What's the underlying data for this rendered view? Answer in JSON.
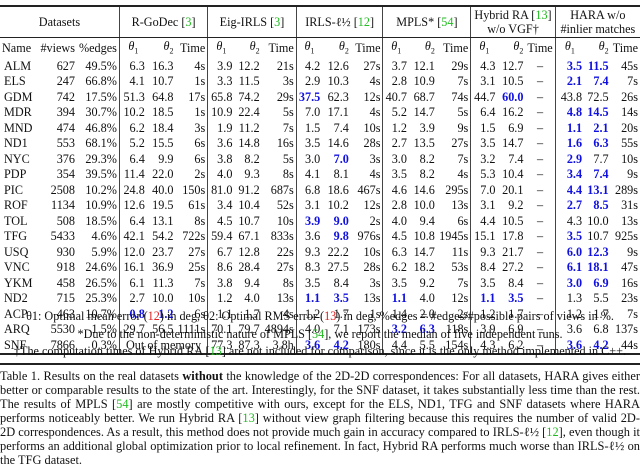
{
  "table": {
    "group_headers": [
      {
        "label": "Datasets"
      },
      {
        "label": "R-GoDec",
        "cite": "3"
      },
      {
        "label": "Eig-IRLS",
        "cite": "3"
      },
      {
        "label": "IRLS-ℓ½",
        "cite": "12"
      },
      {
        "label": "MPLS*",
        "cite": "54"
      },
      {
        "label_line1": "Hybrid RA",
        "cite": "13",
        "label_line2": "w/o VGF†"
      },
      {
        "label_line1": "HARA w/o",
        "label_line2": "#inlier matches"
      }
    ],
    "sub_headers": {
      "name": "Name",
      "views": "#views",
      "edges": "%edges",
      "theta1": "θ1",
      "theta2": "θ2",
      "time": "Time"
    },
    "rows": [
      {
        "name": "ALM",
        "views": "627",
        "edges": "49.5%",
        "rgodec": [
          "6.3",
          "16.3",
          "4s"
        ],
        "eig": [
          "3.9",
          "12.2",
          "21s"
        ],
        "irls": [
          "4.2",
          "12.6",
          "27s"
        ],
        "mpls": [
          "3.7",
          "12.1",
          "29s"
        ],
        "hybrid": [
          "4.3",
          "12.7",
          "–"
        ],
        "hara": [
          "3.5",
          "11.5",
          "45s"
        ],
        "best": {
          "hara": [
            0,
            1
          ]
        }
      },
      {
        "name": "ELS",
        "views": "247",
        "edges": "66.8%",
        "rgodec": [
          "4.1",
          "10.7",
          "1s"
        ],
        "eig": [
          "3.3",
          "11.5",
          "3s"
        ],
        "irls": [
          "2.9",
          "10.3",
          "4s"
        ],
        "mpls": [
          "2.8",
          "10.9",
          "7s"
        ],
        "hybrid": [
          "3.1",
          "10.5",
          "–"
        ],
        "hara": [
          "2.1",
          "7.4",
          "7s"
        ],
        "best": {
          "hara": [
            0,
            1
          ]
        }
      },
      {
        "name": "GDM",
        "views": "742",
        "edges": "17.5%",
        "rgodec": [
          "51.3",
          "64.8",
          "17s"
        ],
        "eig": [
          "65.8",
          "74.2",
          "29s"
        ],
        "irls": [
          "37.5",
          "62.3",
          "12s"
        ],
        "mpls": [
          "40.7",
          "68.7",
          "74s"
        ],
        "hybrid": [
          "44.7",
          "60.0",
          "–"
        ],
        "hara": [
          "43.8",
          "72.5",
          "26s"
        ],
        "best": {
          "irls": [
            0
          ],
          "hybrid": [
            1
          ]
        }
      },
      {
        "name": "MDR",
        "views": "394",
        "edges": "30.7%",
        "rgodec": [
          "10.2",
          "18.5",
          "1s"
        ],
        "eig": [
          "10.9",
          "22.4",
          "5s"
        ],
        "irls": [
          "7.0",
          "17.1",
          "4s"
        ],
        "mpls": [
          "5.2",
          "14.7",
          "5s"
        ],
        "hybrid": [
          "6.4",
          "16.2",
          "–"
        ],
        "hara": [
          "4.8",
          "14.5",
          "14s"
        ],
        "best": {
          "hara": [
            0,
            1
          ]
        }
      },
      {
        "name": "MND",
        "views": "474",
        "edges": "46.8%",
        "rgodec": [
          "6.2",
          "18.4",
          "3s"
        ],
        "eig": [
          "1.9",
          "11.2",
          "7s"
        ],
        "irls": [
          "1.5",
          "7.4",
          "10s"
        ],
        "mpls": [
          "1.2",
          "3.9",
          "9s"
        ],
        "hybrid": [
          "1.5",
          "6.9",
          "–"
        ],
        "hara": [
          "1.1",
          "2.1",
          "20s"
        ],
        "best": {
          "hara": [
            0,
            1
          ]
        }
      },
      {
        "name": "ND1",
        "views": "553",
        "edges": "68.1%",
        "rgodec": [
          "5.2",
          "15.5",
          "6s"
        ],
        "eig": [
          "3.6",
          "14.8",
          "16s"
        ],
        "irls": [
          "3.5",
          "14.6",
          "28s"
        ],
        "mpls": [
          "2.7",
          "13.5",
          "27s"
        ],
        "hybrid": [
          "3.5",
          "14.7",
          "–"
        ],
        "hara": [
          "1.6",
          "6.3",
          "55s"
        ],
        "best": {
          "hara": [
            0,
            1
          ]
        }
      },
      {
        "name": "NYC",
        "views": "376",
        "edges": "29.3%",
        "rgodec": [
          "6.4",
          "9.9",
          "6s"
        ],
        "eig": [
          "3.8",
          "8.2",
          "5s"
        ],
        "irls": [
          "3.0",
          "7.0",
          "3s"
        ],
        "mpls": [
          "3.0",
          "8.2",
          "7s"
        ],
        "hybrid": [
          "3.2",
          "7.4",
          "–"
        ],
        "hara": [
          "2.9",
          "7.7",
          "10s"
        ],
        "best": {
          "irls": [
            1
          ],
          "hara": [
            0
          ]
        }
      },
      {
        "name": "PDP",
        "views": "354",
        "edges": "39.5%",
        "rgodec": [
          "11.4",
          "22.0",
          "2s"
        ],
        "eig": [
          "4.0",
          "9.3",
          "8s"
        ],
        "irls": [
          "4.1",
          "8.1",
          "4s"
        ],
        "mpls": [
          "3.5",
          "8.2",
          "4s"
        ],
        "hybrid": [
          "5.3",
          "10.4",
          "–"
        ],
        "hara": [
          "3.4",
          "7.4",
          "9s"
        ],
        "best": {
          "hara": [
            0,
            1
          ]
        }
      },
      {
        "name": "PIC",
        "views": "2508",
        "edges": "10.2%",
        "rgodec": [
          "24.8",
          "40.0",
          "150s"
        ],
        "eig": [
          "81.0",
          "91.2",
          "687s"
        ],
        "irls": [
          "6.8",
          "18.6",
          "467s"
        ],
        "mpls": [
          "4.6",
          "14.6",
          "295s"
        ],
        "hybrid": [
          "7.0",
          "20.1",
          "–"
        ],
        "hara": [
          "4.4",
          "13.1",
          "289s"
        ],
        "best": {
          "hara": [
            0,
            1
          ]
        }
      },
      {
        "name": "ROF",
        "views": "1134",
        "edges": "10.9%",
        "rgodec": [
          "12.6",
          "19.5",
          "61s"
        ],
        "eig": [
          "3.4",
          "10.4",
          "52s"
        ],
        "irls": [
          "3.1",
          "10.2",
          "12s"
        ],
        "mpls": [
          "2.8",
          "10.0",
          "13s"
        ],
        "hybrid": [
          "3.1",
          "9.2",
          "–"
        ],
        "hara": [
          "2.7",
          "8.5",
          "31s"
        ],
        "best": {
          "hara": [
            0,
            1
          ]
        }
      },
      {
        "name": "TOL",
        "views": "508",
        "edges": "18.5%",
        "rgodec": [
          "6.4",
          "13.1",
          "8s"
        ],
        "eig": [
          "4.5",
          "10.7",
          "10s"
        ],
        "irls": [
          "3.9",
          "9.0",
          "2s"
        ],
        "mpls": [
          "4.0",
          "9.4",
          "6s"
        ],
        "hybrid": [
          "4.4",
          "10.5",
          "–"
        ],
        "hara": [
          "4.3",
          "10.0",
          "13s"
        ],
        "best": {
          "irls": [
            0,
            1
          ]
        }
      },
      {
        "name": "TFG",
        "views": "5433",
        "edges": "4.6%",
        "rgodec": [
          "42.1",
          "54.2",
          "722s"
        ],
        "eig": [
          "59.4",
          "67.1",
          "833s"
        ],
        "irls": [
          "3.6",
          "9.8",
          "976s"
        ],
        "mpls": [
          "4.5",
          "10.8",
          "1945s"
        ],
        "hybrid": [
          "15.1",
          "17.8",
          "–"
        ],
        "hara": [
          "3.5",
          "10.7",
          "925s"
        ],
        "best": {
          "irls": [
            1
          ],
          "hara": [
            0
          ]
        }
      },
      {
        "name": "USQ",
        "views": "930",
        "edges": "5.9%",
        "rgodec": [
          "12.0",
          "23.7",
          "27s"
        ],
        "eig": [
          "6.7",
          "12.8",
          "22s"
        ],
        "irls": [
          "9.3",
          "22.2",
          "10s"
        ],
        "mpls": [
          "6.3",
          "14.7",
          "11s"
        ],
        "hybrid": [
          "9.3",
          "21.7",
          "–"
        ],
        "hara": [
          "6.0",
          "12.3",
          "9s"
        ],
        "best": {
          "hara": [
            0,
            1
          ]
        }
      },
      {
        "name": "VNC",
        "views": "918",
        "edges": "24.6%",
        "rgodec": [
          "16.1",
          "36.9",
          "25s"
        ],
        "eig": [
          "8.6",
          "28.4",
          "27s"
        ],
        "irls": [
          "8.3",
          "27.5",
          "28s"
        ],
        "mpls": [
          "6.2",
          "18.2",
          "53s"
        ],
        "hybrid": [
          "8.4",
          "27.2",
          "–"
        ],
        "hara": [
          "6.1",
          "18.1",
          "47s"
        ],
        "best": {
          "hara": [
            0,
            1
          ]
        }
      },
      {
        "name": "YKM",
        "views": "458",
        "edges": "26.5%",
        "rgodec": [
          "6.1",
          "11.3",
          "7s"
        ],
        "eig": [
          "3.8",
          "9.4",
          "8s"
        ],
        "irls": [
          "3.5",
          "8.4",
          "3s"
        ],
        "mpls": [
          "3.5",
          "9.2",
          "7s"
        ],
        "hybrid": [
          "3.5",
          "8.4",
          "–"
        ],
        "hara": [
          "3.0",
          "6.9",
          "16s"
        ],
        "best": {
          "hara": [
            0,
            1
          ]
        }
      },
      {
        "name": "ND2",
        "views": "715",
        "edges": "25.3%",
        "rgodec": [
          "2.7",
          "10.0",
          "10s"
        ],
        "eig": [
          "1.2",
          "4.0",
          "13s"
        ],
        "irls": [
          "1.1",
          "3.5",
          "13s"
        ],
        "mpls": [
          "1.1",
          "4.0",
          "12s"
        ],
        "hybrid": [
          "1.1",
          "3.5",
          "–"
        ],
        "hara": [
          "1.3",
          "5.5",
          "23s"
        ],
        "best": {
          "irls": [
            0,
            1
          ],
          "mpls": [
            0
          ],
          "hybrid": [
            0,
            1
          ]
        }
      },
      {
        "name": "ACP",
        "views": "463",
        "edges": "10.7%",
        "rgodec": [
          "0.8",
          "1.2",
          "6s"
        ],
        "eig": [
          "1.1",
          "1.7",
          "4s"
        ],
        "irls": [
          "1.2",
          "1.7",
          "1s"
        ],
        "mpls": [
          "1.4",
          "2.0",
          "2s"
        ],
        "hybrid": [
          "1.2",
          "1.7",
          "–"
        ],
        "hara": [
          "1.2",
          "1.7",
          "7s"
        ],
        "best": {
          "rgodec": [
            0,
            1
          ]
        }
      },
      {
        "name": "ARQ",
        "views": "5530",
        "edges": "1.5%",
        "rgodec": [
          "29.7",
          "56.5",
          "1111s"
        ],
        "eig": [
          "70.1",
          "79.7",
          "4894s"
        ],
        "irls": [
          "4.0",
          "7.1",
          "173s"
        ],
        "mpls": [
          "3.2",
          "6.3",
          "118s"
        ],
        "hybrid": [
          "3.9",
          "6.9",
          "–"
        ],
        "hara": [
          "3.6",
          "6.8",
          "137s"
        ],
        "best": {
          "mpls": [
            0,
            1
          ]
        }
      },
      {
        "name": "SNF",
        "views": "7866",
        "edges": "0.3%",
        "rgodec_merged": "Out of memory",
        "eig": [
          "77.3",
          "87.3",
          "3.8h"
        ],
        "irls": [
          "3.6",
          "4.2",
          "180s"
        ],
        "mpls": [
          "4.4",
          "5.5",
          "154s"
        ],
        "hybrid": [
          "4.3",
          "6.2",
          "–"
        ],
        "hara": [
          "3.6",
          "4.2",
          "44s"
        ],
        "best": {
          "irls": [
            0,
            1
          ],
          "hara": [
            0,
            1
          ]
        }
      }
    ]
  },
  "footnotes": {
    "line1": {
      "t1": "θ1: Optimal mean error (",
      "r1": "12",
      "t2": ") in deg, θ2: Optimal RMS error (",
      "r2": "13",
      "t3": ") in deg, %edges = #edges/#possible pairs of views in %."
    },
    "line2": {
      "t1": "*Due to the non-deterministic nature of MPLS [",
      "c": "54",
      "t2": "], we report the median of five independent runs."
    },
    "line3": {
      "t1": "†The computation times of Hybrid RA [",
      "c": "13",
      "t2": "] are not included for comparison, since it is the only method implemented in C++."
    }
  },
  "caption": {
    "p1": "Table 1.  Results on the real datasets ",
    "bold": "without",
    "p2": " the knowledge of the 2D-2D correspondences: For all datasets, HARA gives either better or comparable results to the state of the art.  Interestingly, for the SNF dataset, it takes substantially less time than the rest.  The results of MPLS [",
    "c1": "54",
    "p3": "] are mostly competitive with ours, except for the ELS, ND1, TFG and SNF datasets where HARA performs noticeably better. We run Hybrid RA [",
    "c2": "13",
    "p4": "] without view graph filtering because this requires the number of valid 2D-2D correspondences.  As a result, this method does not provide much gain in accuracy compared to IRLS-ℓ½ [",
    "c3": "12",
    "p5": "], even though it performs an additional global optimization prior to local refinement.  In fact, Hybrid RA performs much worse than IRLS-ℓ½ on the TFG dataset."
  },
  "colors": {
    "best": "#1010e0",
    "citation": "#22bb22",
    "equation_ref": "#e02020"
  }
}
